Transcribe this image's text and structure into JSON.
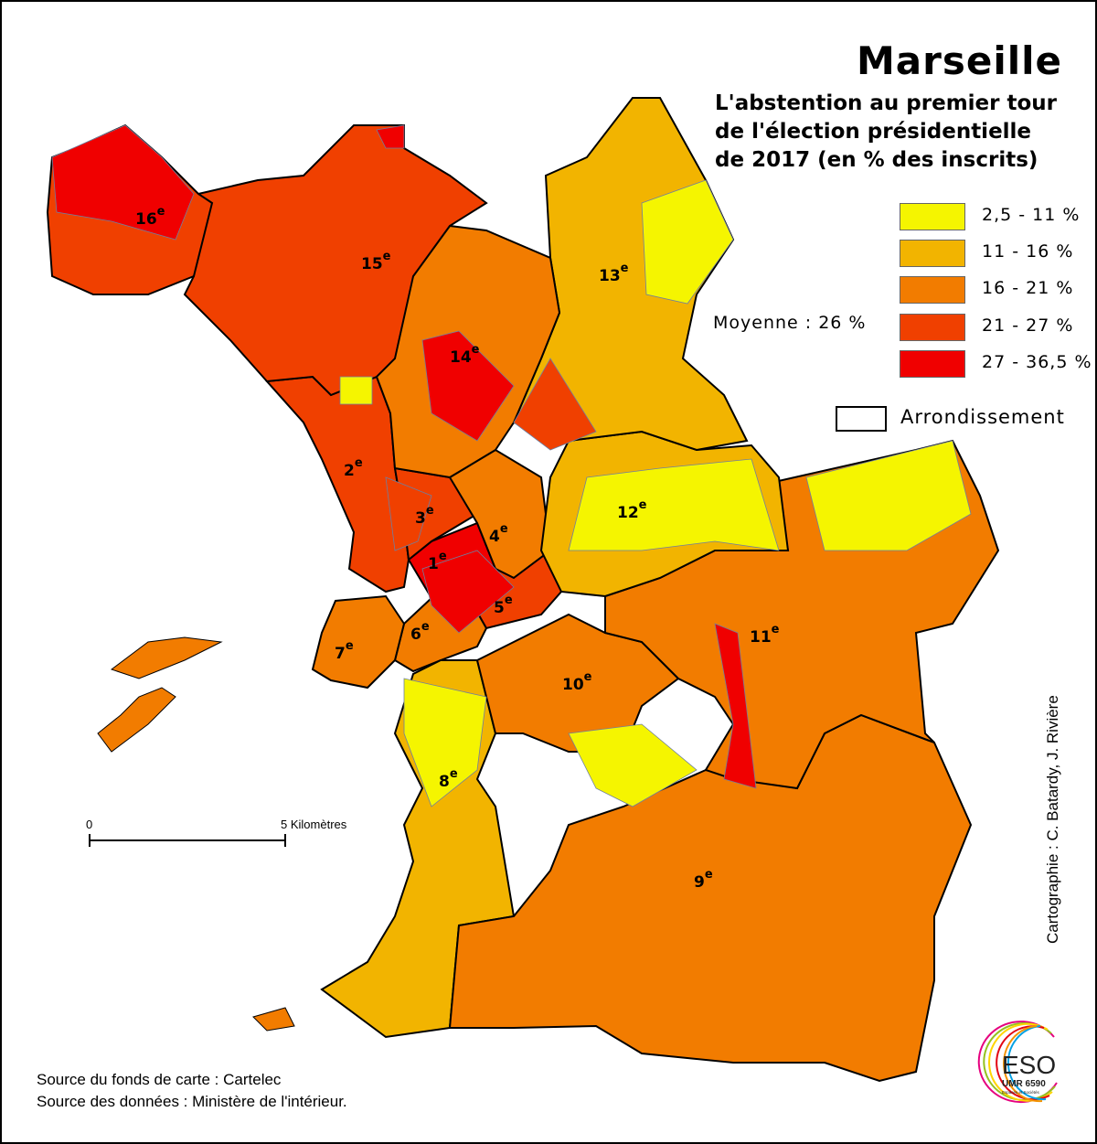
{
  "title": "Marseille",
  "subtitle_lines": [
    "L'abstention au premier tour",
    "de l'élection présidentielle",
    "de 2017 (en % des inscrits)"
  ],
  "legend": {
    "classes": [
      {
        "label": "2,5 - 11 %",
        "color": "#f5f500"
      },
      {
        "label": "11 - 16 %",
        "color": "#f2b400"
      },
      {
        "label": "16 - 21 %",
        "color": "#f27c00"
      },
      {
        "label": "21 - 27 %",
        "color": "#f04000"
      },
      {
        "label": "27 - 36,5 %",
        "color": "#f00000"
      }
    ],
    "mean": "Moyenne  : 26 %",
    "boundary_label": "Arrondissement"
  },
  "arrondissements": [
    {
      "num": "1",
      "sup": "e",
      "cls": 4
    },
    {
      "num": "2",
      "sup": "e",
      "cls": 3
    },
    {
      "num": "3",
      "sup": "e",
      "cls": 3
    },
    {
      "num": "4",
      "sup": "e",
      "cls": 2
    },
    {
      "num": "5",
      "sup": "e",
      "cls": 3
    },
    {
      "num": "6",
      "sup": "e",
      "cls": 2
    },
    {
      "num": "7",
      "sup": "e",
      "cls": 2
    },
    {
      "num": "8",
      "sup": "e",
      "cls": 1
    },
    {
      "num": "9",
      "sup": "e",
      "cls": 2
    },
    {
      "num": "10",
      "sup": "e",
      "cls": 2
    },
    {
      "num": "11",
      "sup": "e",
      "cls": 2
    },
    {
      "num": "12",
      "sup": "e",
      "cls": 1
    },
    {
      "num": "13",
      "sup": "e",
      "cls": 1
    },
    {
      "num": "14",
      "sup": "e",
      "cls": 2
    },
    {
      "num": "15",
      "sup": "e",
      "cls": 3
    },
    {
      "num": "16",
      "sup": "e",
      "cls": 3
    }
  ],
  "scale": {
    "start": "0",
    "end": "5 Kilomètres"
  },
  "credit": "Cartographie : C. Batardy, J. Rivière",
  "sources": [
    "Source du fonds de carte : Cartelec",
    "Source des données : Ministère de l'intérieur."
  ],
  "logo": {
    "main": "ESO",
    "sub": "UMR 6590",
    "tag": "Espaces et Sociétés"
  }
}
